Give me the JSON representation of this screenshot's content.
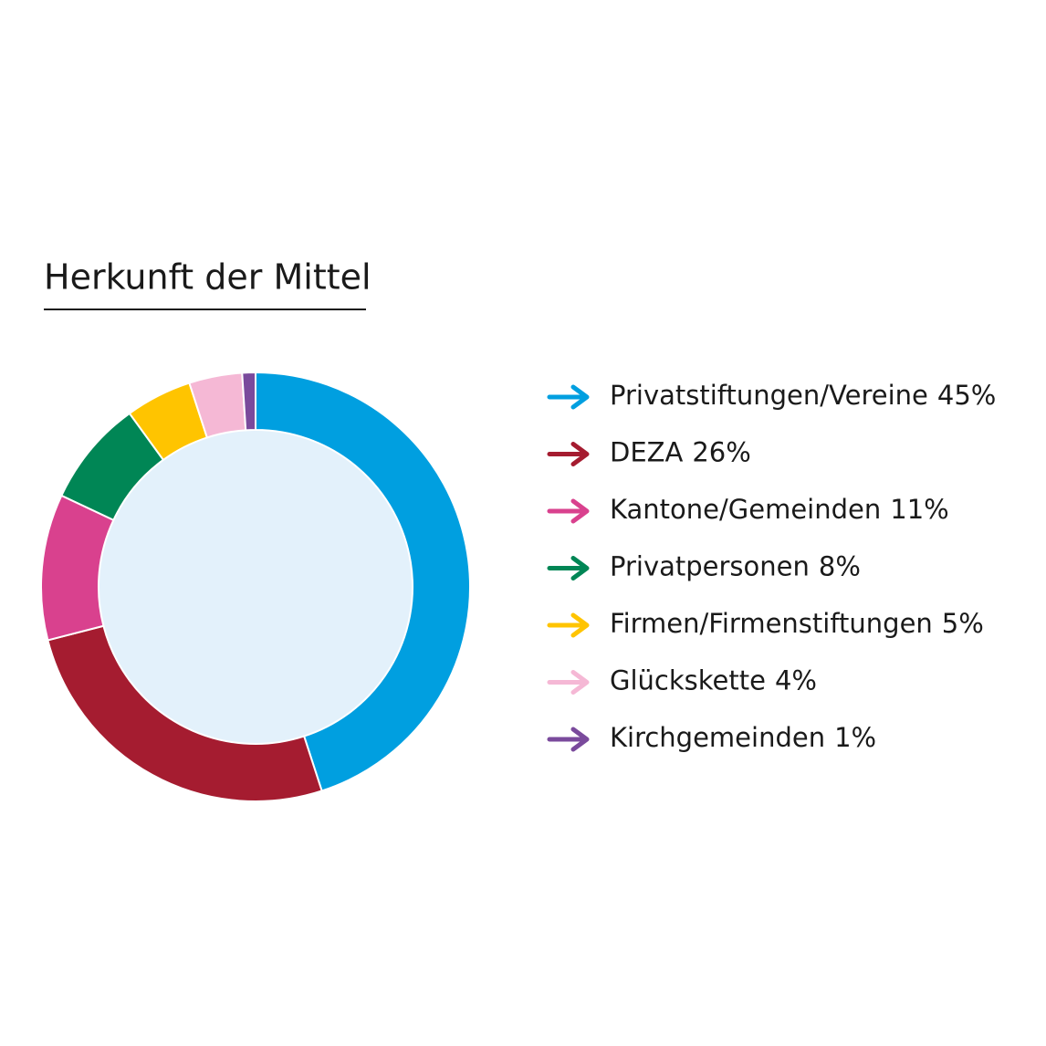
{
  "chart_data": {
    "type": "donut",
    "title": "Herkunft der Mittel",
    "categories": [
      "Privatstiftungen/Vereine",
      "DEZA",
      "Kantone/Gemeinden",
      "Privatpersonen",
      "Firmen/Firmenstiftungen",
      "Glückskette",
      "Kirchgemeinden"
    ],
    "values": [
      45,
      26,
      11,
      8,
      5,
      4,
      1
    ],
    "value_labels": [
      "45%",
      "26%",
      "11%",
      "8%",
      "5%",
      "4%",
      "1%"
    ],
    "colors": [
      "#009fe0",
      "#a51c30",
      "#d9418e",
      "#008655",
      "#ffc400",
      "#f5b8d5",
      "#7a4a9c"
    ]
  }
}
